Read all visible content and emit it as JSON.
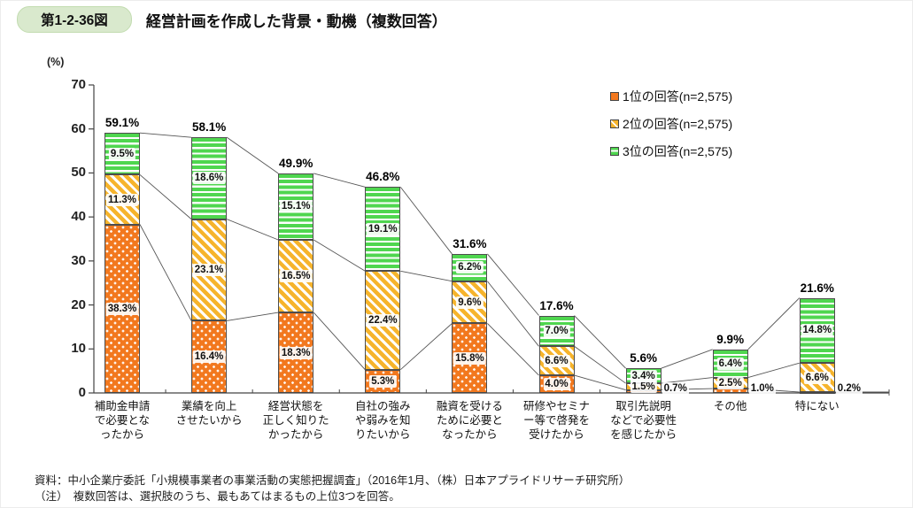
{
  "header": {
    "figure_label": "第1-2-36図",
    "title": "経営計画を作成した背景・動機（複数回答）"
  },
  "legend_items": [
    {
      "label": "1位の回答(n=2,575)",
      "series": "rank1",
      "color": "#f2781e"
    },
    {
      "label": "2位の回答(n=2,575)",
      "series": "rank2",
      "color": "#f6b42c"
    },
    {
      "label": "3位の回答(n=2,575)",
      "series": "rank3",
      "color": "#4fd64f"
    }
  ],
  "footnotes": {
    "source": "資料：中小企業庁委託「小規模事業者の事業活動の実態把握調査」（2016年1月、（株）日本アプライドリサーチ研究所）",
    "note": "（注）　複数回答は、選択肢のうち、最もあてはまるもの上位3つを回答。"
  },
  "chart_data": {
    "type": "bar",
    "stacked": true,
    "title": "経営計画を作成した背景・動機（複数回答）",
    "ylabel": "(%)",
    "ylim": [
      0,
      70
    ],
    "yticks": [
      0,
      10,
      20,
      30,
      40,
      50,
      60,
      70
    ],
    "grid": false,
    "legend_position": "top-right",
    "series_names": [
      "1位の回答",
      "2位の回答",
      "3位の回答"
    ],
    "colors": {
      "rank1": "#f2781e",
      "rank2": "#f6b42c",
      "rank3": "#4fd64f"
    },
    "categories": [
      {
        "label": "補助金申請で必要となったから",
        "label_lines": [
          "補助金申請",
          "で必要とな",
          "ったから"
        ],
        "values": [
          38.3,
          11.3,
          9.5
        ],
        "total": 59.1
      },
      {
        "label": "業績を向上させたいから",
        "label_lines": [
          "業績を向上",
          "させたいから"
        ],
        "values": [
          16.4,
          23.1,
          18.6
        ],
        "total": 58.1
      },
      {
        "label": "経営状態を正しく知りたかったから",
        "label_lines": [
          "経営状態を",
          "正しく知りた",
          "かったから"
        ],
        "values": [
          18.3,
          16.5,
          15.1
        ],
        "total": 49.9
      },
      {
        "label": "自社の強みや弱みを知りたいから",
        "label_lines": [
          "自社の強み",
          "や弱みを知",
          "りたいから"
        ],
        "values": [
          5.3,
          22.4,
          19.1
        ],
        "total": 46.8
      },
      {
        "label": "融資を受けるために必要となったから",
        "label_lines": [
          "融資を受ける",
          "ために必要と",
          "なったから"
        ],
        "values": [
          15.8,
          9.6,
          6.2
        ],
        "total": 31.6
      },
      {
        "label": "研修やセミナー等で啓発を受けたから",
        "label_lines": [
          "研修やセミナ",
          "ー等で啓発を",
          "受けたから"
        ],
        "values": [
          4.0,
          6.6,
          7.0
        ],
        "total": 17.6
      },
      {
        "label": "取引先説明などで必要性を感じたから",
        "label_lines": [
          "取引先説明",
          "などで必要性",
          "を感じたから"
        ],
        "values": [
          0.7,
          1.5,
          3.4
        ],
        "total": 5.6
      },
      {
        "label": "その他",
        "label_lines": [
          "その他"
        ],
        "values": [
          1.0,
          2.5,
          6.4
        ],
        "total": 9.9
      },
      {
        "label": "特にない",
        "label_lines": [
          "特にない"
        ],
        "values": [
          0.2,
          6.6,
          14.8
        ],
        "total": 21.6
      }
    ]
  }
}
